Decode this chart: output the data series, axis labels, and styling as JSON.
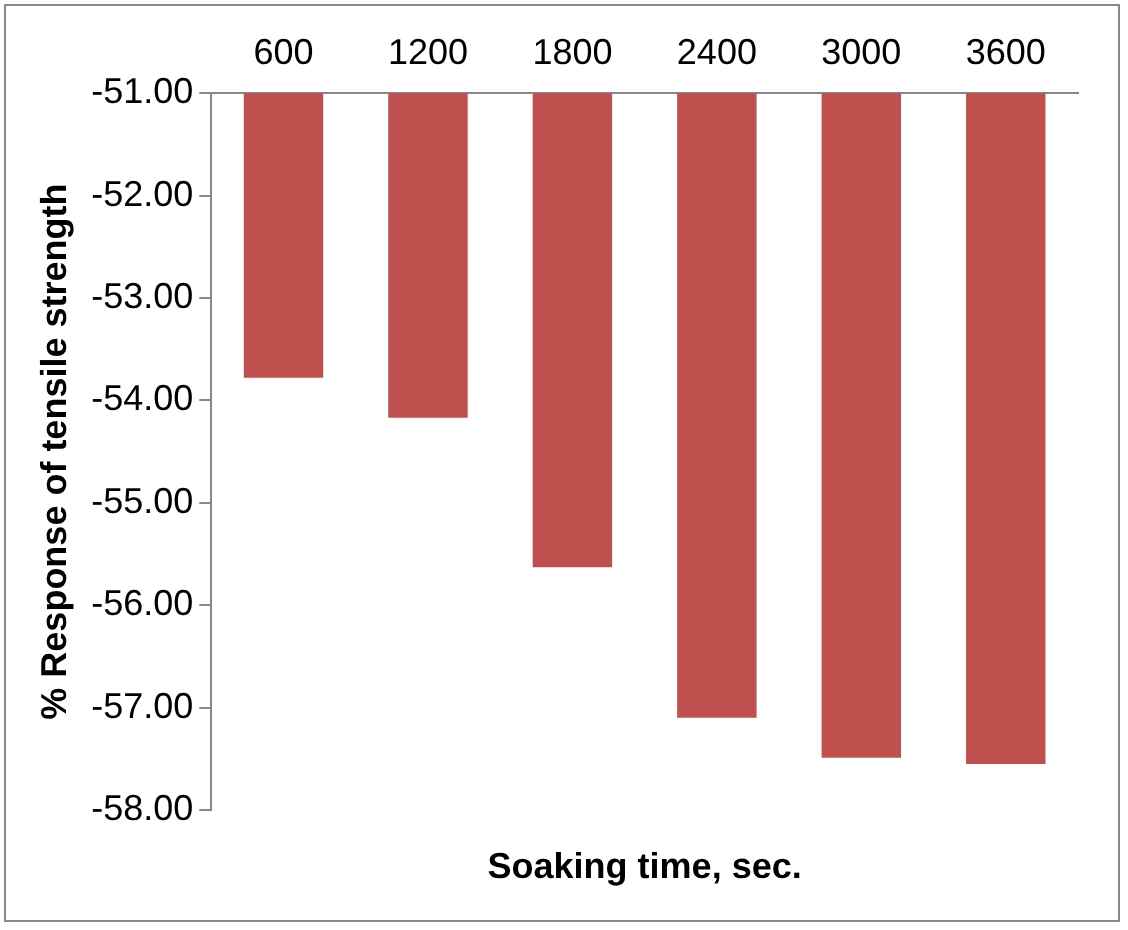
{
  "chart_data": {
    "type": "bar",
    "xlabel": "Soaking time, sec.",
    "ylabel": "% Response of tensile strength",
    "categories": [
      "600",
      "1200",
      "1800",
      "2400",
      "3000",
      "3600"
    ],
    "values": [
      -53.78,
      -54.17,
      -55.63,
      -57.1,
      -57.49,
      -57.55
    ],
    "color": "#c0504d",
    "ylim": [
      -58,
      -51
    ],
    "yticks": [
      {
        "value": -58,
        "label": "-58.00"
      },
      {
        "value": -57,
        "label": "-57.00"
      },
      {
        "value": -56,
        "label": "-56.00"
      },
      {
        "value": -55,
        "label": "-55.00"
      },
      {
        "value": -54,
        "label": "-54.00"
      },
      {
        "value": -53,
        "label": "-53.00"
      },
      {
        "value": -52,
        "label": "-52.00"
      },
      {
        "value": -51,
        "label": "-51.00"
      }
    ],
    "grid": false,
    "legend": false
  }
}
